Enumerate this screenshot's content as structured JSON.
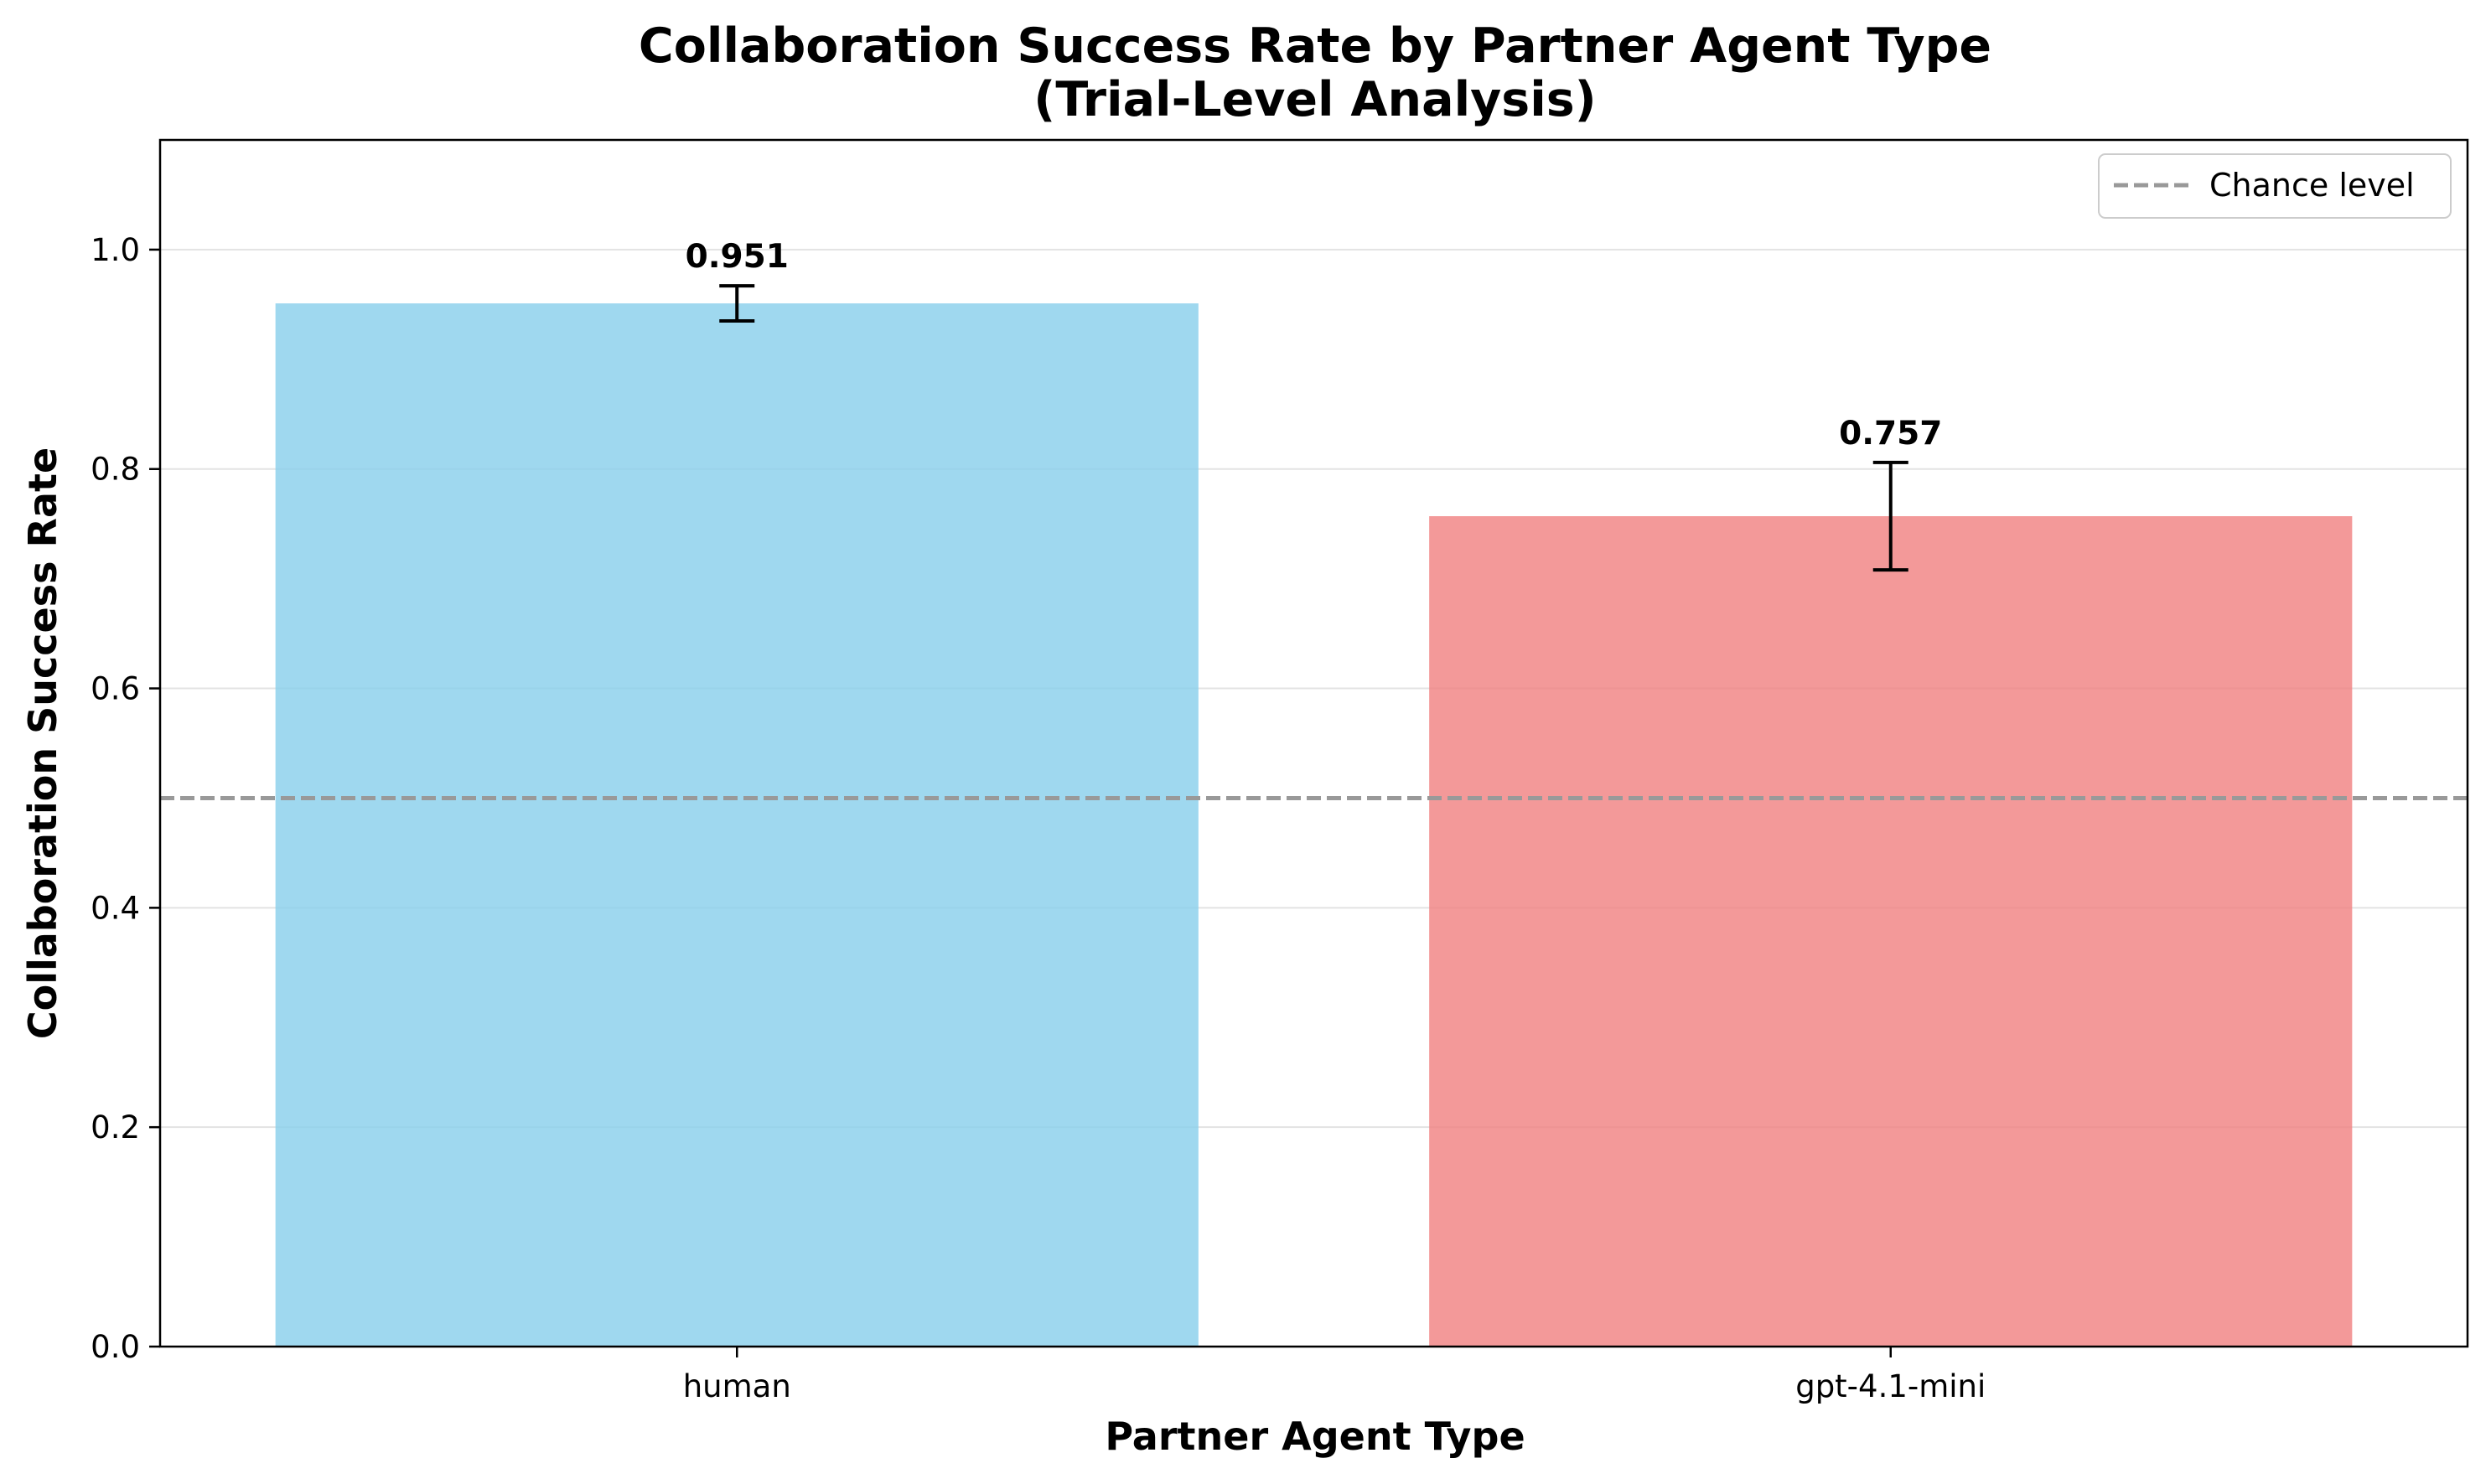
{
  "chart_data": {
    "type": "bar",
    "title": "Collaboration Success Rate by Partner Agent Type",
    "subtitle": "(Trial-Level Analysis)",
    "xlabel": "Partner Agent Type",
    "ylabel": "Collaboration Success Rate",
    "categories": [
      "human",
      "gpt-4.1-mini"
    ],
    "values": [
      0.951,
      0.757
    ],
    "value_labels": [
      "0.951",
      "0.757"
    ],
    "error_bars": [
      [
        0.935,
        0.967
      ],
      [
        0.708,
        0.806
      ]
    ],
    "colors": [
      "#87ceeb",
      "#f08080"
    ],
    "ylim": [
      0,
      1.1
    ],
    "yticks": [
      0.0,
      0.2,
      0.4,
      0.6,
      0.8,
      1.0
    ],
    "ytick_labels": [
      "0.0",
      "0.2",
      "0.4",
      "0.6",
      "0.8",
      "1.0"
    ],
    "grid": "horizontal",
    "reference_line": {
      "y": 0.5,
      "label": "Chance level",
      "style": "dashed",
      "color": "#999999"
    },
    "legend": {
      "position": "top-right",
      "entries": [
        "Chance level"
      ]
    }
  }
}
